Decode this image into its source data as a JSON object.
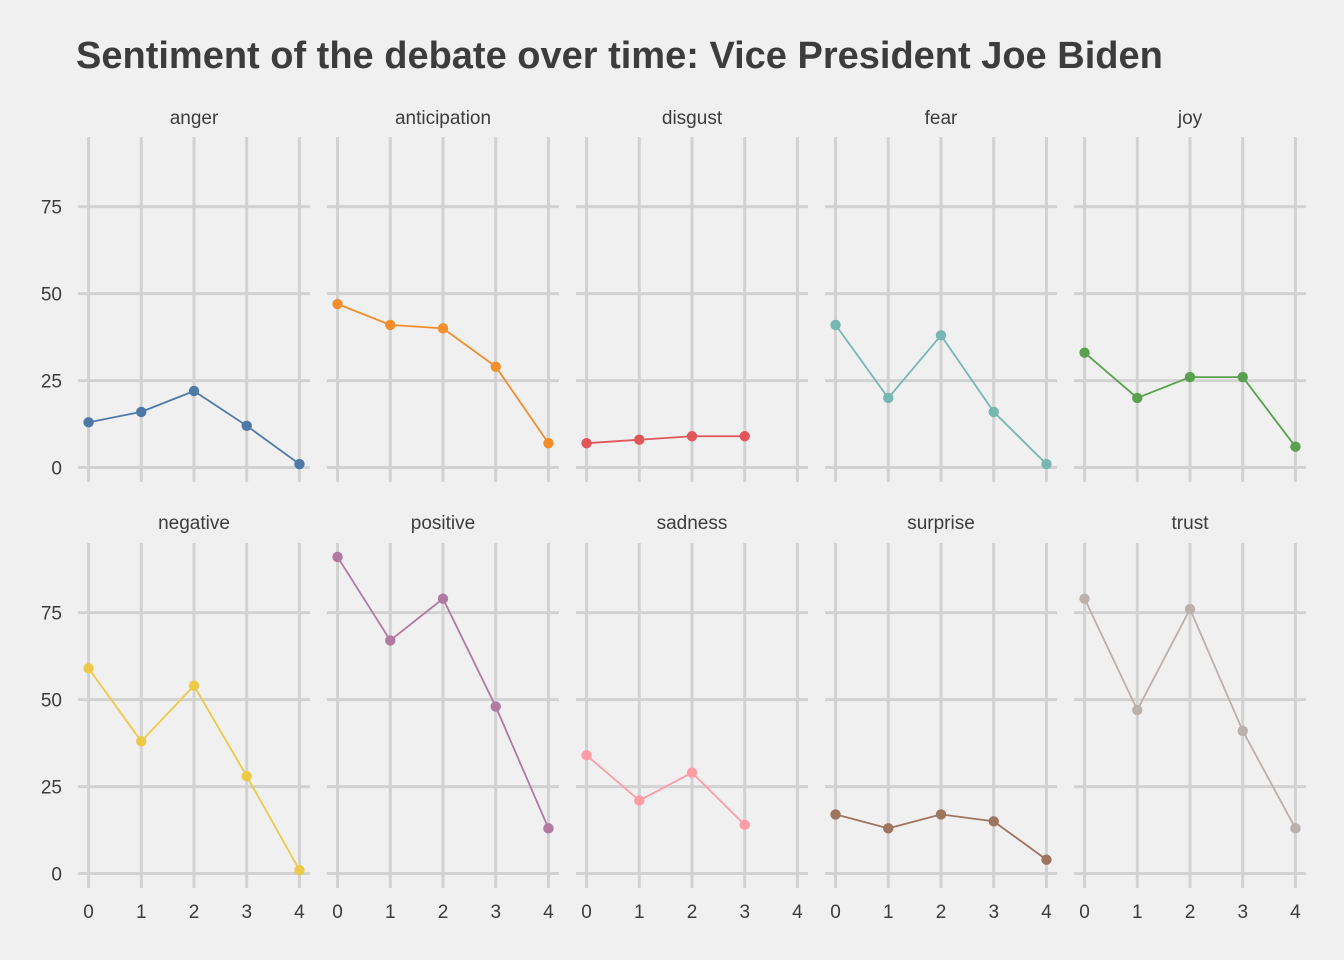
{
  "chart_data": {
    "type": "line",
    "title": "Sentiment of the debate over time: Vice President Joe Biden",
    "xlabel": "",
    "ylabel": "",
    "x_ticks": [
      "0",
      "1",
      "2",
      "3",
      "4"
    ],
    "y_ticks": [
      "0",
      "25",
      "50",
      "75"
    ],
    "xlim": [
      -0.2,
      4.2
    ],
    "ylim": [
      -3,
      95
    ],
    "grid": true,
    "legend": "none",
    "facets": [
      {
        "name": "anger",
        "color": "#4e79a7",
        "x": [
          0,
          1,
          2,
          3,
          4
        ],
        "values": [
          13,
          16,
          22,
          12,
          1
        ]
      },
      {
        "name": "anticipation",
        "color": "#f28e2b",
        "x": [
          0,
          1,
          2,
          3,
          4
        ],
        "values": [
          47,
          41,
          40,
          29,
          7
        ]
      },
      {
        "name": "disgust",
        "color": "#e15759",
        "x": [
          0,
          1,
          2,
          3
        ],
        "values": [
          7,
          8,
          9,
          9
        ]
      },
      {
        "name": "fear",
        "color": "#76b7b2",
        "x": [
          0,
          1,
          2,
          3,
          4
        ],
        "values": [
          41,
          20,
          38,
          16,
          1
        ]
      },
      {
        "name": "joy",
        "color": "#59a14f",
        "x": [
          0,
          1,
          2,
          3,
          4
        ],
        "values": [
          33,
          20,
          26,
          26,
          6
        ]
      },
      {
        "name": "negative",
        "color": "#edc948",
        "x": [
          0,
          1,
          2,
          3,
          4
        ],
        "values": [
          59,
          38,
          54,
          28,
          1
        ]
      },
      {
        "name": "positive",
        "color": "#b07aa1",
        "x": [
          0,
          1,
          2,
          3,
          4
        ],
        "values": [
          91,
          67,
          79,
          48,
          13
        ]
      },
      {
        "name": "sadness",
        "color": "#ff9da7",
        "x": [
          0,
          1,
          2,
          3
        ],
        "values": [
          34,
          21,
          29,
          14
        ]
      },
      {
        "name": "surprise",
        "color": "#9c755f",
        "x": [
          0,
          1,
          2,
          3,
          4
        ],
        "values": [
          17,
          13,
          17,
          15,
          4
        ]
      },
      {
        "name": "trust",
        "color": "#bab0ac",
        "x": [
          0,
          1,
          2,
          3,
          4
        ],
        "values": [
          79,
          47,
          76,
          41,
          13
        ]
      }
    ]
  }
}
